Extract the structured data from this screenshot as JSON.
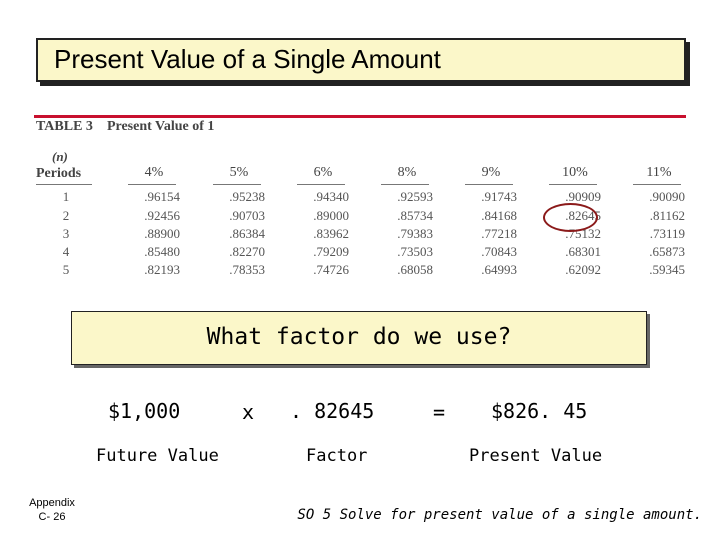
{
  "title": "Present Value of a Single Amount",
  "table": {
    "label": "TABLE 3",
    "caption": "Present Value of 1",
    "n_label": "(n)",
    "periods_label": "Periods",
    "columns": [
      "4%",
      "5%",
      "6%",
      "8%",
      "9%",
      "10%",
      "11%"
    ],
    "rows": [
      {
        "period": "1",
        "values": [
          ".96154",
          ".95238",
          ".94340",
          ".92593",
          ".91743",
          ".90909",
          ".90090"
        ]
      },
      {
        "period": "2",
        "values": [
          ".92456",
          ".90703",
          ".89000",
          ".85734",
          ".84168",
          ".82645",
          ".81162"
        ]
      },
      {
        "period": "3",
        "values": [
          ".88900",
          ".86384",
          ".83962",
          ".79383",
          ".77218",
          ".75132",
          ".73119"
        ]
      },
      {
        "period": "4",
        "values": [
          ".85480",
          ".82270",
          ".79209",
          ".73503",
          ".70843",
          ".68301",
          ".65873"
        ]
      },
      {
        "period": "5",
        "values": [
          ".82193",
          ".78353",
          ".74726",
          ".68058",
          ".64993",
          ".62092",
          ".59345"
        ]
      }
    ],
    "highlight": {
      "period": "2",
      "column": "10%"
    }
  },
  "question": "What factor do we use?",
  "equation": {
    "future_value": "$1,000",
    "operator_times": "x",
    "factor": ". 82645",
    "operator_equals": "=",
    "present_value": "$826. 45",
    "future_value_label": "Future Value",
    "factor_label": "Factor",
    "present_value_label": "Present Value"
  },
  "footer": {
    "appendix": "Appendix",
    "page": "C- 26",
    "objective": "SO 5  Solve for present value of a single amount."
  },
  "colors": {
    "title_bg": "#fbf7c9",
    "rule_red": "#c8102e",
    "highlight_oval": "#8b1a1a"
  }
}
